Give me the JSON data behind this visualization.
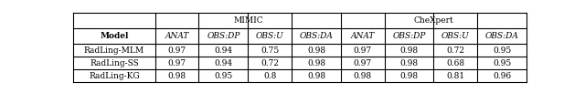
{
  "title_mimic": "MIMIC",
  "title_chexpert": "CheXpert",
  "col_header": [
    "Model",
    "ANAT",
    "OBS:DP",
    "OBS:U",
    "OBS:DA",
    "ANAT",
    "OBS:DP",
    "OBS:U",
    "OBS:DA"
  ],
  "rows": [
    [
      "RadLing-MLM",
      "0.97",
      "0.94",
      "0.75",
      "0.98",
      "0.97",
      "0.98",
      "0.72",
      "0.95"
    ],
    [
      "RadLing-SS",
      "0.97",
      "0.94",
      "0.72",
      "0.98",
      "0.97",
      "0.98",
      "0.68",
      "0.95"
    ],
    [
      "RadLing-KG",
      "0.98",
      "0.95",
      "0.8",
      "0.98",
      "0.98",
      "0.98",
      "0.81",
      "0.96"
    ]
  ],
  "background_color": "#ffffff",
  "figsize": [
    6.4,
    1.02
  ],
  "dpi": 100
}
